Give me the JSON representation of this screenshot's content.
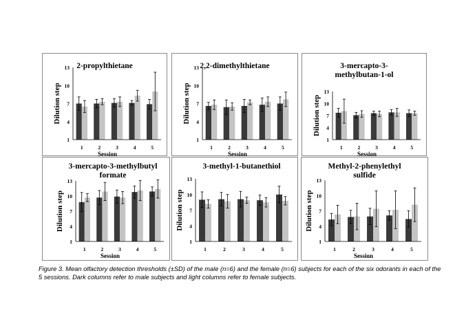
{
  "colors": {
    "male": "#3a3a3a",
    "female": "#c4c4c4",
    "axis": "#000000",
    "error": "#000000"
  },
  "chart_data": [
    {
      "type": "bar",
      "title": "2-propylthietane",
      "ylabel": "Dilution step",
      "xlabel": "Session",
      "categories": [
        "1",
        "2",
        "3",
        "4",
        "5"
      ],
      "ylim": [
        1,
        13
      ],
      "yticks": [
        1,
        4,
        7,
        10,
        13
      ],
      "series": [
        {
          "values": [
            7.0,
            7.0,
            7.1,
            7.1,
            6.9
          ],
          "err": [
            1.1,
            0.7,
            0.7,
            0.4,
            0.8
          ]
        },
        {
          "values": [
            6.5,
            7.3,
            7.3,
            8.3,
            9.0
          ],
          "err": [
            1.0,
            0.5,
            0.8,
            0.9,
            3.2
          ]
        }
      ]
    },
    {
      "type": "bar",
      "title": "2,2-dimethylthietane",
      "ylabel": "Dilution step",
      "xlabel": "Session",
      "categories": [
        "1",
        "2",
        "3",
        "4",
        "5"
      ],
      "ylim": [
        1,
        13
      ],
      "yticks": [
        1,
        4,
        7,
        10,
        13
      ],
      "series": [
        {
          "values": [
            6.6,
            6.4,
            6.6,
            6.8,
            7.0
          ],
          "err": [
            0.6,
            1.2,
            1.1,
            1.1,
            1.1
          ]
        },
        {
          "values": [
            6.8,
            6.5,
            7.2,
            7.3,
            7.7
          ],
          "err": [
            0.8,
            0.6,
            0.4,
            0.8,
            1.2
          ]
        }
      ]
    },
    {
      "type": "bar",
      "title": "3-mercapto-3-methylbutan-1-ol",
      "ylabel": "Dilution step",
      "xlabel": "Session",
      "categories": [
        "1",
        "2",
        "3",
        "4",
        "5"
      ],
      "ylim": [
        1,
        13
      ],
      "yticks": [
        1,
        4,
        7,
        10,
        13
      ],
      "series": [
        {
          "values": [
            7.7,
            7.1,
            7.6,
            7.8,
            7.6
          ],
          "err": [
            1.1,
            0.7,
            0.5,
            0.7,
            0.8
          ]
        },
        {
          "values": [
            8.1,
            7.4,
            7.4,
            7.8,
            7.6
          ],
          "err": [
            3.0,
            0.8,
            0.7,
            1.0,
            0.5
          ]
        }
      ]
    },
    {
      "type": "bar",
      "title": "3-mercapto-3-methylbutyl formate",
      "ylabel": "Dilution step",
      "xlabel": "Session",
      "categories": [
        "1",
        "2",
        "3",
        "4",
        "5"
      ],
      "ylim": [
        1,
        13
      ],
      "yticks": [
        1,
        4,
        7,
        10,
        13
      ],
      "series": [
        {
          "values": [
            8.8,
            9.7,
            9.9,
            10.8,
            10.9
          ],
          "err": [
            1.9,
            1.4,
            1.3,
            1.2,
            0.9
          ]
        },
        {
          "values": [
            9.7,
            10.9,
            9.7,
            11.1,
            11.4
          ],
          "err": [
            0.8,
            1.8,
            1.2,
            2.0,
            1.8
          ]
        }
      ]
    },
    {
      "type": "bar",
      "title": "3-methyl-1-butanethiol",
      "ylabel": "Dilution step",
      "xlabel": "",
      "categories": [
        "1",
        "2",
        "3",
        "4",
        "5"
      ],
      "ylim": [
        1,
        13
      ],
      "yticks": [
        1,
        4,
        7,
        10,
        13
      ],
      "series": [
        {
          "values": [
            9.0,
            9.1,
            9.1,
            8.9,
            10.0
          ],
          "err": [
            1.5,
            1.3,
            1.5,
            1.0,
            1.6
          ]
        },
        {
          "values": [
            8.2,
            8.7,
            8.9,
            8.5,
            8.8
          ],
          "err": [
            0.8,
            1.3,
            0.6,
            0.9,
            0.8
          ]
        }
      ]
    },
    {
      "type": "bar",
      "title": "Methyl-2-phenylethyl sulfide",
      "ylabel": "Dilution step",
      "xlabel": "Session",
      "categories": [
        "1",
        "2",
        "3",
        "4",
        "5"
      ],
      "ylim": [
        1,
        13
      ],
      "yticks": [
        1,
        4,
        7,
        10,
        13
      ],
      "series": [
        {
          "values": [
            5.3,
            5.8,
            5.9,
            6.1,
            5.4
          ],
          "err": [
            1.2,
            1.3,
            1.6,
            0.9,
            1.6
          ]
        },
        {
          "values": [
            6.3,
            5.9,
            7.4,
            7.2,
            8.2
          ],
          "err": [
            1.8,
            2.6,
            3.5,
            3.7,
            3.3
          ]
        }
      ]
    }
  ],
  "caption": "Figure 3. Mean olfactory detection thresholds (±SD) of the male (n=6) and the female (n=6) subjects for each of the six odorants in each of the 5 sessions. Dark columns refer to male subjects and light columns refer to female subjects."
}
